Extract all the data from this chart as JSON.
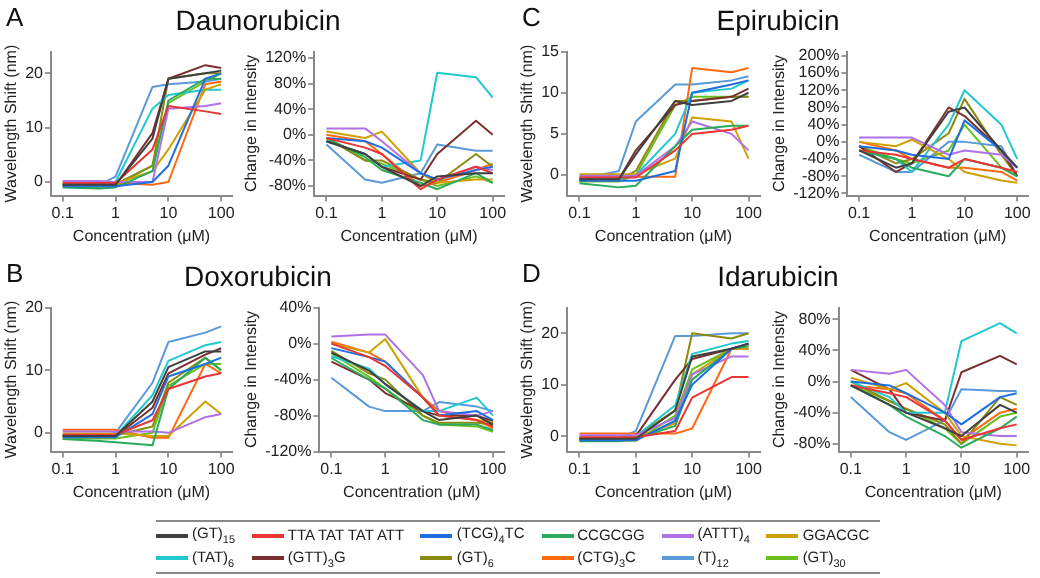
{
  "chart_data": [
    {
      "type": "line",
      "title": "Daunorubicin",
      "annotations": [
        "A"
      ],
      "xlabel": "Concentration (μM)",
      "ylabel": "Wavelength Shift (nm)",
      "log": "x",
      "xlim": [
        0.06,
        160
      ],
      "xticks": [
        0.1,
        1,
        10,
        100
      ],
      "ylim": [
        -2.5,
        24
      ],
      "yticks": [
        0,
        10,
        20
      ],
      "grid": false,
      "marker": "none",
      "line_style": "solid",
      "legend": "bottom",
      "x": [
        0.1,
        0.5,
        1,
        5,
        10,
        50,
        100
      ],
      "series": [
        {
          "name": "(GT)$_{15}$",
          "color": "#404040",
          "values": [
            -0.5,
            -0.5,
            -0.5,
            8,
            19,
            20,
            20.5
          ]
        },
        {
          "name": "TTA TAT TAT ATT",
          "color": "#e83535",
          "values": [
            -0.2,
            -0.2,
            -0.2,
            6,
            14,
            13,
            12.5
          ]
        },
        {
          "name": "(TCG)$_{4}$TC",
          "color": "#1f6fe0",
          "values": [
            -0.8,
            -0.8,
            -0.8,
            0,
            3,
            19,
            20
          ]
        },
        {
          "name": "CCGCGG",
          "color": "#2aaa5a",
          "values": [
            -1,
            -1.2,
            -1,
            2,
            15,
            19,
            19
          ]
        },
        {
          "name": "(ATTT)$_{4}$",
          "color": "#b070e8",
          "values": [
            0.2,
            0.2,
            0,
            0,
            13.5,
            14,
            14.5
          ]
        },
        {
          "name": "GGACGC",
          "color": "#d0a000",
          "values": [
            -0.3,
            -0.3,
            -0.3,
            2,
            6,
            17,
            18
          ]
        },
        {
          "name": "(TAT)$_{6}$",
          "color": "#20c8d0",
          "values": [
            -0.5,
            -0.5,
            0,
            13.5,
            16,
            17,
            17
          ]
        },
        {
          "name": "(GTT)$_{3}$G",
          "color": "#7a3030",
          "values": [
            -0.6,
            -0.6,
            -0.6,
            9,
            19,
            21.5,
            21
          ]
        },
        {
          "name": "(GT)$_{6}$",
          "color": "#8a8a10",
          "values": [
            -0.4,
            -0.4,
            -0.4,
            3,
            19,
            20,
            20
          ]
        },
        {
          "name": "(CTG)$_{3}$C",
          "color": "#ff6a10",
          "values": [
            0,
            0,
            -0.2,
            -0.5,
            0,
            18,
            18.5
          ]
        },
        {
          "name": "(T)$_{12}$",
          "color": "#5a9ad8",
          "values": [
            -0.5,
            -0.5,
            1,
            17.5,
            18,
            18.5,
            19
          ]
        },
        {
          "name": "(GT)$_{30}$",
          "color": "#6abf20",
          "values": [
            -0.9,
            -0.9,
            -0.7,
            3,
            14.5,
            18.5,
            20
          ]
        }
      ]
    },
    {
      "type": "line",
      "xlabel": "Concentration (μM)",
      "ylabel": "Change in Intensity",
      "log": "x",
      "xlim": [
        0.06,
        160
      ],
      "xticks": [
        0.1,
        1,
        10,
        100
      ],
      "ylim": [
        -95,
        130
      ],
      "yticks": [
        {
          "value": -80,
          "label": "-80%"
        },
        {
          "value": -40,
          "label": "-40%"
        },
        {
          "value": 0,
          "label": "0%"
        },
        {
          "value": 40,
          "label": "40%"
        },
        {
          "value": 80,
          "label": "80%"
        },
        {
          "value": 120,
          "label": "120%"
        }
      ],
      "grid": false,
      "marker": "none",
      "line_style": "solid",
      "x": [
        0.1,
        0.5,
        1,
        5,
        10,
        50,
        100
      ],
      "series": [
        {
          "color": "#404040",
          "values": [
            -10,
            -30,
            -50,
            -80,
            -65,
            -60,
            -60
          ]
        },
        {
          "color": "#e83535",
          "values": [
            -5,
            -20,
            -30,
            -85,
            -70,
            -50,
            -60
          ]
        },
        {
          "color": "#1f6fe0",
          "values": [
            -5,
            -10,
            -20,
            -60,
            -70,
            -55,
            -50
          ]
        },
        {
          "color": "#2aaa5a",
          "values": [
            -5,
            -35,
            -55,
            -75,
            -85,
            -60,
            -75
          ]
        },
        {
          "color": "#b070e8",
          "values": [
            10,
            10,
            -10,
            -60,
            -70,
            -50,
            -55
          ]
        },
        {
          "color": "#d0a000",
          "values": [
            5,
            -5,
            5,
            -60,
            -75,
            -70,
            -70
          ]
        },
        {
          "color": "#20c8d0",
          "values": [
            -10,
            -30,
            -50,
            -40,
            97,
            90,
            58
          ]
        },
        {
          "color": "#7a3030",
          "values": [
            -10,
            -30,
            -50,
            -70,
            -30,
            22,
            0
          ]
        },
        {
          "color": "#8a8a10",
          "values": [
            -5,
            -40,
            -40,
            -70,
            -75,
            -30,
            -50
          ]
        },
        {
          "color": "#ff6a10",
          "values": [
            0,
            -10,
            -30,
            -80,
            -75,
            -55,
            -45
          ]
        },
        {
          "color": "#5a9ad8",
          "values": [
            -15,
            -70,
            -75,
            -60,
            -15,
            -25,
            -25
          ]
        },
        {
          "color": "#6abf20",
          "values": [
            -5,
            -40,
            -45,
            -70,
            -80,
            -65,
            -75
          ]
        }
      ]
    },
    {
      "type": "line",
      "title": "Epirubicin",
      "annotations": [
        "C"
      ],
      "xlabel": "Concentration (μM)",
      "ylabel": "Wavelength Shift (nm)",
      "log": "x",
      "xlim": [
        0.06,
        160
      ],
      "xticks": [
        0.1,
        1,
        10,
        100
      ],
      "ylim": [
        -2.5,
        15
      ],
      "yticks": [
        0,
        5,
        10,
        15
      ],
      "grid": false,
      "marker": "none",
      "line_style": "solid",
      "x": [
        0.1,
        0.5,
        1,
        5,
        10,
        50,
        100
      ],
      "series": [
        {
          "color": "#404040",
          "values": [
            -0.5,
            -0.5,
            2.5,
            9,
            8.5,
            9,
            10
          ]
        },
        {
          "color": "#e83535",
          "values": [
            -0.3,
            -0.3,
            -0.3,
            3,
            5,
            5.5,
            6
          ]
        },
        {
          "color": "#1f6fe0",
          "values": [
            -0.7,
            -0.7,
            -0.7,
            0.5,
            10,
            11,
            11.5
          ]
        },
        {
          "color": "#2aaa5a",
          "values": [
            -1,
            -1.5,
            -1.3,
            3.5,
            5.5,
            6,
            6
          ]
        },
        {
          "color": "#b070e8",
          "values": [
            -0.1,
            -0.1,
            -0.1,
            3.5,
            6.5,
            5,
            3
          ]
        },
        {
          "color": "#d0a000",
          "values": [
            0.1,
            0.1,
            0.1,
            2,
            7,
            6.5,
            2
          ]
        },
        {
          "color": "#20c8d0",
          "values": [
            -0.5,
            -0.5,
            0,
            5,
            10,
            10.5,
            11.5
          ]
        },
        {
          "color": "#7a3030",
          "values": [
            -0.5,
            -0.5,
            3,
            8.5,
            9,
            9.5,
            10.5
          ]
        },
        {
          "color": "#8a8a10",
          "values": [
            -0.6,
            -0.6,
            0.5,
            9,
            9,
            9.5,
            9.5
          ]
        },
        {
          "color": "#ff6a10",
          "values": [
            -0.2,
            -0.2,
            -0.2,
            -0.2,
            13,
            12.5,
            13
          ]
        },
        {
          "color": "#5a9ad8",
          "values": [
            -0.5,
            0.5,
            6.5,
            11,
            11,
            11.5,
            12
          ]
        },
        {
          "color": "#6abf20",
          "values": [
            -0.8,
            -0.8,
            0,
            8.5,
            9.5,
            9.5,
            9.5
          ]
        }
      ]
    },
    {
      "type": "line",
      "xlabel": "Concentration (μM)",
      "ylabel": "Change in Intensity",
      "log": "x",
      "xlim": [
        0.06,
        160
      ],
      "xticks": [
        0.1,
        1,
        10,
        100
      ],
      "ylim": [
        -125,
        210
      ],
      "yticks": [
        {
          "value": -120,
          "label": "-120%"
        },
        {
          "value": -80,
          "label": "-80%"
        },
        {
          "value": -40,
          "label": "-40%"
        },
        {
          "value": 0,
          "label": "0%"
        },
        {
          "value": 40,
          "label": "40%"
        },
        {
          "value": 80,
          "label": "80%"
        },
        {
          "value": 120,
          "label": "120%"
        },
        {
          "value": 160,
          "label": "160%"
        },
        {
          "value": 200,
          "label": "200%"
        }
      ],
      "grid": false,
      "marker": "none",
      "line_style": "solid",
      "x": [
        0.1,
        0.5,
        1,
        5,
        10,
        50,
        100
      ],
      "series": [
        {
          "color": "#404040",
          "values": [
            -20,
            -60,
            -50,
            70,
            80,
            -20,
            -60
          ]
        },
        {
          "color": "#e83535",
          "values": [
            -20,
            -30,
            -40,
            -60,
            -40,
            -60,
            -70
          ]
        },
        {
          "color": "#1f6fe0",
          "values": [
            -10,
            -20,
            -30,
            -40,
            50,
            -20,
            -60
          ]
        },
        {
          "color": "#2aaa5a",
          "values": [
            -20,
            -40,
            -60,
            -80,
            -40,
            -60,
            -80
          ]
        },
        {
          "color": "#b070e8",
          "values": [
            10,
            10,
            10,
            -30,
            -20,
            -30,
            -60
          ]
        },
        {
          "color": "#d0a000",
          "values": [
            0,
            -10,
            5,
            -40,
            -70,
            -90,
            -95
          ]
        },
        {
          "color": "#20c8d0",
          "values": [
            -20,
            -40,
            -70,
            40,
            120,
            40,
            -40
          ]
        },
        {
          "color": "#7a3030",
          "values": [
            -10,
            -70,
            -50,
            80,
            60,
            -20,
            -80
          ]
        },
        {
          "color": "#8a8a10",
          "values": [
            -10,
            -50,
            -40,
            20,
            100,
            -30,
            -80
          ]
        },
        {
          "color": "#ff6a10",
          "values": [
            0,
            -20,
            -40,
            -60,
            -60,
            -70,
            -90
          ]
        },
        {
          "color": "#5a9ad8",
          "values": [
            -30,
            -70,
            -70,
            0,
            0,
            -10,
            -80
          ]
        },
        {
          "color": "#6abf20",
          "values": [
            -10,
            -40,
            -50,
            -20,
            40,
            -60,
            -80
          ]
        }
      ]
    },
    {
      "type": "line",
      "title": "Doxorubicin",
      "annotations": [
        "B"
      ],
      "xlabel": "Concentration (μM)",
      "ylabel": "Wavelength Shift (nm)",
      "log": "x",
      "xlim": [
        0.06,
        160
      ],
      "xticks": [
        0.1,
        1,
        10,
        100
      ],
      "ylim": [
        -3,
        20
      ],
      "yticks": [
        0,
        10,
        20
      ],
      "grid": false,
      "marker": "none",
      "line_style": "solid",
      "x": [
        0.1,
        0.5,
        1,
        5,
        10,
        50,
        100
      ],
      "series": [
        {
          "color": "#404040",
          "values": [
            -0.5,
            -0.5,
            -0.5,
            5,
            10.5,
            13,
            13
          ]
        },
        {
          "color": "#e83535",
          "values": [
            -0.3,
            -0.3,
            -0.3,
            2,
            7,
            9,
            9.5
          ]
        },
        {
          "color": "#1f6fe0",
          "values": [
            -0.7,
            -0.7,
            -0.7,
            3,
            9,
            11,
            12
          ]
        },
        {
          "color": "#2aaa5a",
          "values": [
            -1,
            -1.3,
            -1.5,
            -2,
            7,
            12,
            10
          ]
        },
        {
          "color": "#b070e8",
          "values": [
            0.2,
            0.2,
            0.2,
            0.2,
            0,
            2.5,
            3
          ]
        },
        {
          "color": "#d0a000",
          "values": [
            -0.1,
            -0.1,
            -0.1,
            -0.5,
            -0.5,
            5,
            3
          ]
        },
        {
          "color": "#20c8d0",
          "values": [
            -0.5,
            -0.5,
            -0.5,
            6,
            11.5,
            14,
            14.5
          ]
        },
        {
          "color": "#7a3030",
          "values": [
            -0.6,
            -0.6,
            -0.6,
            4,
            9.5,
            12.5,
            13.5
          ]
        },
        {
          "color": "#8a8a10",
          "values": [
            -0.4,
            -0.4,
            -0.4,
            1,
            8,
            12,
            10
          ]
        },
        {
          "color": "#ff6a10",
          "values": [
            0.5,
            0.5,
            0.5,
            -0.8,
            -0.8,
            11,
            9.5
          ]
        },
        {
          "color": "#5a9ad8",
          "values": [
            -0.5,
            -0.5,
            0,
            8,
            14.5,
            16,
            17
          ]
        },
        {
          "color": "#6abf20",
          "values": [
            -0.9,
            -0.9,
            -0.9,
            0,
            7.5,
            11,
            11
          ]
        }
      ]
    },
    {
      "type": "line",
      "xlabel": "Concentration (μM)",
      "ylabel": "Change in Intensity",
      "log": "x",
      "xlim": [
        0.06,
        160
      ],
      "xticks": [
        0.1,
        1,
        10,
        100
      ],
      "ylim": [
        -120,
        40
      ],
      "yticks": [
        {
          "value": -120,
          "label": "-120%"
        },
        {
          "value": -80,
          "label": "-80%"
        },
        {
          "value": -40,
          "label": "-40%"
        },
        {
          "value": 0,
          "label": "0%"
        },
        {
          "value": 40,
          "label": "40%"
        }
      ],
      "grid": false,
      "marker": "none",
      "line_style": "solid",
      "x": [
        0.1,
        0.5,
        1,
        5,
        10,
        50,
        100
      ],
      "series": [
        {
          "color": "#404040",
          "values": [
            -10,
            -30,
            -45,
            -75,
            -85,
            -80,
            -90
          ]
        },
        {
          "color": "#e83535",
          "values": [
            0,
            -15,
            -25,
            -60,
            -80,
            -85,
            -92
          ]
        },
        {
          "color": "#1f6fe0",
          "values": [
            -5,
            -15,
            -20,
            -60,
            -80,
            -75,
            -85
          ]
        },
        {
          "color": "#2aaa5a",
          "values": [
            -16,
            -40,
            -50,
            -85,
            -90,
            -90,
            -96
          ]
        },
        {
          "color": "#b070e8",
          "values": [
            8,
            10,
            10,
            -35,
            -75,
            -80,
            -75
          ]
        },
        {
          "color": "#d0a000",
          "values": [
            0,
            -10,
            5,
            -60,
            -80,
            -85,
            -88
          ]
        },
        {
          "color": "#20c8d0",
          "values": [
            -14,
            -28,
            -45,
            -75,
            -75,
            -60,
            -80
          ]
        },
        {
          "color": "#7a3030",
          "values": [
            -20,
            -40,
            -55,
            -75,
            -80,
            -80,
            -86
          ]
        },
        {
          "color": "#8a8a10",
          "values": [
            -8,
            -33,
            -40,
            -80,
            -88,
            -88,
            -90
          ]
        },
        {
          "color": "#ff6a10",
          "values": [
            2,
            -10,
            -20,
            -60,
            -75,
            -85,
            -94
          ]
        },
        {
          "color": "#5a9ad8",
          "values": [
            -38,
            -70,
            -75,
            -75,
            -65,
            -70,
            -75
          ]
        },
        {
          "color": "#6abf20",
          "values": [
            -11,
            -37,
            -50,
            -80,
            -90,
            -92,
            -98
          ]
        }
      ]
    },
    {
      "type": "line",
      "title": "Idarubicin",
      "annotations": [
        "D"
      ],
      "xlabel": "Concentration (μM)",
      "ylabel": "Wavelength Shift (nm)",
      "log": "x",
      "xlim": [
        0.06,
        160
      ],
      "xticks": [
        0.1,
        1,
        10,
        100
      ],
      "ylim": [
        -3,
        25
      ],
      "yticks": [
        0,
        10,
        20
      ],
      "grid": false,
      "marker": "none",
      "line_style": "solid",
      "x": [
        0.1,
        0.5,
        1,
        5,
        10,
        50,
        100
      ],
      "series": [
        {
          "color": "#404040",
          "values": [
            -0.5,
            -0.5,
            -0.5,
            5,
            15.5,
            17,
            18
          ]
        },
        {
          "color": "#e83535",
          "values": [
            -0.2,
            -0.2,
            -0.2,
            1,
            7.5,
            11.5,
            11.5
          ]
        },
        {
          "color": "#1f6fe0",
          "values": [
            -0.8,
            -0.8,
            -0.8,
            3,
            10,
            17,
            18
          ]
        },
        {
          "color": "#2aaa5a",
          "values": [
            -1,
            -1,
            -0.5,
            2,
            11,
            17,
            17.5
          ]
        },
        {
          "color": "#b070e8",
          "values": [
            0.2,
            0.2,
            0.2,
            3.5,
            12,
            15.5,
            15.5
          ]
        },
        {
          "color": "#d0a000",
          "values": [
            -0.3,
            -0.3,
            -0.3,
            2.5,
            12,
            17,
            17
          ]
        },
        {
          "color": "#20c8d0",
          "values": [
            -0.5,
            -0.5,
            0,
            6,
            16,
            18,
            18.5
          ]
        },
        {
          "color": "#7a3030",
          "values": [
            -0.6,
            -0.6,
            0,
            11,
            15,
            17,
            18
          ]
        },
        {
          "color": "#8a8a10",
          "values": [
            -0.4,
            -0.4,
            0,
            5,
            20,
            19,
            20
          ]
        },
        {
          "color": "#ff6a10",
          "values": [
            0.5,
            0.5,
            0.5,
            0.5,
            1.5,
            17,
            17
          ]
        },
        {
          "color": "#5a9ad8",
          "values": [
            -0.5,
            -0.5,
            1,
            19.5,
            19.5,
            20,
            20
          ]
        },
        {
          "color": "#6abf20",
          "values": [
            -0.9,
            -0.9,
            -0.9,
            4,
            13,
            17,
            17.5
          ]
        }
      ]
    },
    {
      "type": "line",
      "xlabel": "Concentration (μM)",
      "ylabel": "Change in Intensity",
      "log": "x",
      "xlim": [
        0.06,
        160
      ],
      "xticks": [
        0.1,
        1,
        10,
        100
      ],
      "ylim": [
        -90,
        95
      ],
      "yticks": [
        {
          "value": -80,
          "label": "-80%"
        },
        {
          "value": -40,
          "label": "-40%"
        },
        {
          "value": 0,
          "label": "0%"
        },
        {
          "value": 40,
          "label": "40%"
        },
        {
          "value": 80,
          "label": "80%"
        }
      ],
      "grid": false,
      "marker": "none",
      "line_style": "solid",
      "x": [
        0.1,
        0.5,
        1,
        5,
        10,
        50,
        100
      ],
      "series": [
        {
          "color": "#404040",
          "values": [
            -5,
            -30,
            -40,
            -60,
            -70,
            -30,
            -40
          ]
        },
        {
          "color": "#e83535",
          "values": [
            -5,
            -15,
            -20,
            -50,
            -75,
            -60,
            -55
          ]
        },
        {
          "color": "#1f6fe0",
          "values": [
            0,
            -5,
            -15,
            -40,
            -55,
            -20,
            -15
          ]
        },
        {
          "color": "#2aaa5a",
          "values": [
            -5,
            -30,
            -45,
            -70,
            -85,
            -60,
            -45
          ]
        },
        {
          "color": "#b070e8",
          "values": [
            15,
            10,
            15,
            -30,
            -65,
            -70,
            -70
          ]
        },
        {
          "color": "#d0a000",
          "values": [
            5,
            -10,
            -2,
            -40,
            -70,
            -80,
            -82
          ]
        },
        {
          "color": "#20c8d0",
          "values": [
            0,
            -20,
            -40,
            -40,
            52,
            75,
            62
          ]
        },
        {
          "color": "#7a3030",
          "values": [
            15,
            -10,
            -40,
            -50,
            12,
            33,
            22
          ]
        },
        {
          "color": "#8a8a10",
          "values": [
            0,
            -25,
            -35,
            -55,
            -80,
            -20,
            -30
          ]
        },
        {
          "color": "#ff6a10",
          "values": [
            -5,
            -10,
            -15,
            -50,
            -75,
            -40,
            -35
          ]
        },
        {
          "color": "#5a9ad8",
          "values": [
            -20,
            -65,
            -75,
            -50,
            -10,
            -12,
            -12
          ]
        },
        {
          "color": "#6abf20",
          "values": [
            -5,
            -25,
            -35,
            -60,
            -80,
            -45,
            -40
          ]
        }
      ]
    }
  ]
}
